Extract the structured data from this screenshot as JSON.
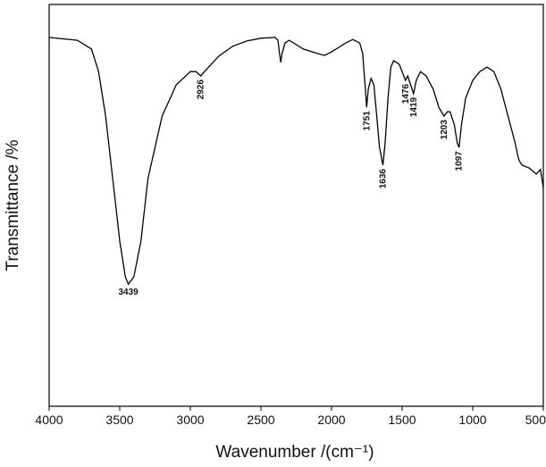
{
  "chart_data": {
    "type": "line",
    "x_label": "Wavenumber /(cm⁻¹)",
    "y_label": "Transmittance /%",
    "xlim": [
      4000,
      500
    ],
    "ylim": [
      0,
      100
    ],
    "xticks": [
      4000,
      3500,
      3000,
      2500,
      2000,
      1500,
      1000,
      500
    ],
    "color": "#000000",
    "x": [
      4000,
      3800,
      3700,
      3650,
      3600,
      3550,
      3500,
      3460,
      3439,
      3400,
      3350,
      3300,
      3200,
      3100,
      3000,
      2960,
      2926,
      2900,
      2800,
      2700,
      2600,
      2500,
      2400,
      2380,
      2360,
      2350,
      2330,
      2300,
      2250,
      2200,
      2100,
      2050,
      2000,
      1900,
      1850,
      1800,
      1780,
      1760,
      1751,
      1740,
      1720,
      1700,
      1680,
      1660,
      1636,
      1620,
      1600,
      1580,
      1560,
      1520,
      1500,
      1476,
      1460,
      1440,
      1419,
      1400,
      1370,
      1330,
      1280,
      1240,
      1203,
      1180,
      1160,
      1130,
      1110,
      1097,
      1080,
      1050,
      1000,
      950,
      900,
      850,
      800,
      750,
      700,
      680,
      670,
      650,
      600,
      550,
      520,
      500
    ],
    "y": [
      91.8,
      91.1,
      88.9,
      83.3,
      72.2,
      56.7,
      41.1,
      32.2,
      30.4,
      32.2,
      41.1,
      56.7,
      72.2,
      80,
      83.3,
      83.3,
      82.2,
      83.3,
      87.1,
      89.6,
      90.9,
      91.6,
      91.8,
      91.1,
      85.6,
      87.8,
      90.4,
      91.1,
      90,
      88.9,
      87.8,
      87.3,
      88.2,
      90.4,
      91.3,
      90.4,
      87.8,
      78.9,
      74.4,
      78.9,
      81.6,
      80,
      72.2,
      64.4,
      60,
      65.6,
      76.7,
      84.4,
      86,
      85.1,
      83.3,
      81.1,
      82.2,
      80,
      77.8,
      81.1,
      83.3,
      82.2,
      78.9,
      74.4,
      72.2,
      73.3,
      73.3,
      70,
      65.6,
      64.4,
      70,
      76.7,
      81.1,
      83.3,
      84.4,
      83.3,
      78.9,
      72.2,
      65.6,
      62.2,
      61.1,
      60,
      59.3,
      57.8,
      58.9,
      54.4
    ],
    "peaks": [
      3439,
      2926,
      1751,
      1636,
      1476,
      1419,
      1203,
      1097
    ]
  }
}
